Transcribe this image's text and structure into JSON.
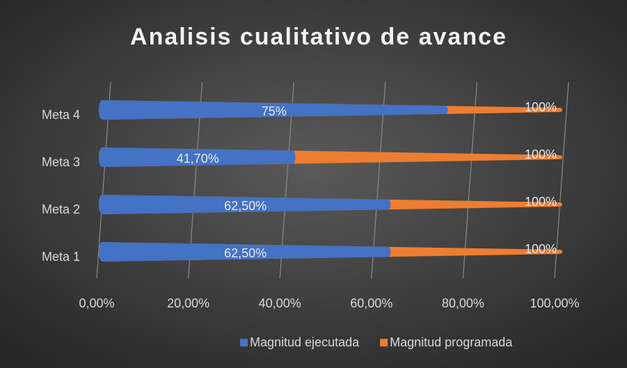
{
  "chart_data": {
    "type": "bar",
    "orientation": "horizontal",
    "title": "Analisis cualitativo de avance",
    "categories": [
      "Meta 1",
      "Meta 2",
      "Meta 3",
      "Meta 4"
    ],
    "series": [
      {
        "name": "Magnitud ejecutada",
        "color": "#4472c4",
        "values": [
          62.5,
          62.5,
          41.7,
          75
        ],
        "value_labels": [
          "62,50%",
          "62,50%",
          "41,70%",
          "75%"
        ]
      },
      {
        "name": "Magnitud programada",
        "color": "#ed7d31",
        "values": [
          100,
          100,
          100,
          100
        ],
        "value_labels": [
          "100%",
          "100%",
          "100%",
          "100%"
        ]
      }
    ],
    "xlim": [
      0,
      100
    ],
    "xticks": [
      {
        "value": 0,
        "label": "0,00%"
      },
      {
        "value": 20,
        "label": "20,00%"
      },
      {
        "value": 40,
        "label": "40,00%"
      },
      {
        "value": 60,
        "label": "60,00%"
      },
      {
        "value": 80,
        "label": "80,00%"
      },
      {
        "value": 100,
        "label": "100,00%"
      }
    ],
    "grid": true,
    "legend": "bottom"
  }
}
